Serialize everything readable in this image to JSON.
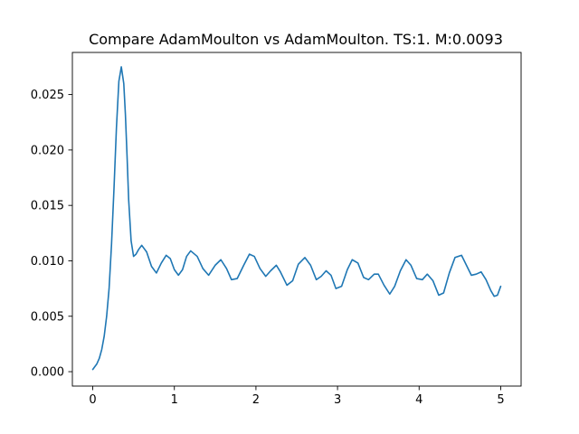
{
  "chart_data": {
    "type": "line",
    "title": "Compare AdamMoulton vs AdamMoulton. TS:1. M:0.0093",
    "xlabel": "",
    "ylabel": "",
    "xlim": [
      -0.25,
      5.25
    ],
    "ylim": [
      -0.0013,
      0.0288
    ],
    "grid": false,
    "x_ticks": [
      0,
      1,
      2,
      3,
      4,
      5
    ],
    "x_tick_labels": [
      "0",
      "1",
      "2",
      "3",
      "4",
      "5"
    ],
    "y_ticks": [
      0.0,
      0.005,
      0.01,
      0.015,
      0.02,
      0.025
    ],
    "y_tick_labels": [
      "0.000",
      "0.005",
      "0.010",
      "0.015",
      "0.020",
      "0.025"
    ],
    "series": [
      {
        "color": "#1f77b4",
        "x": [
          0,
          0.02,
          0.05,
          0.08,
          0.11,
          0.14,
          0.17,
          0.2,
          0.23,
          0.26,
          0.29,
          0.32,
          0.35,
          0.38,
          0.4,
          0.42,
          0.44,
          0.47,
          0.5,
          0.53,
          0.56,
          0.6,
          0.66,
          0.72,
          0.78,
          0.84,
          0.9,
          0.95,
          1.0,
          1.05,
          1.1,
          1.15,
          1.2,
          1.28,
          1.35,
          1.42,
          1.5,
          1.57,
          1.64,
          1.7,
          1.77,
          1.85,
          1.92,
          1.98,
          2.05,
          2.12,
          2.18,
          2.25,
          2.3,
          2.38,
          2.45,
          2.52,
          2.6,
          2.67,
          2.74,
          2.8,
          2.86,
          2.92,
          2.98,
          3.05,
          3.12,
          3.18,
          3.25,
          3.32,
          3.38,
          3.45,
          3.5,
          3.57,
          3.64,
          3.7,
          3.77,
          3.84,
          3.9,
          3.97,
          4.04,
          4.1,
          4.17,
          4.24,
          4.3,
          4.37,
          4.44,
          4.52,
          4.58,
          4.64,
          4.7,
          4.76,
          4.82,
          4.88,
          4.92,
          4.96,
          5.0
        ],
        "y": [
          0.0002,
          0.0004,
          0.0007,
          0.0012,
          0.002,
          0.0032,
          0.005,
          0.0075,
          0.0115,
          0.0165,
          0.022,
          0.0262,
          0.0275,
          0.026,
          0.0232,
          0.0195,
          0.0155,
          0.0118,
          0.0104,
          0.0106,
          0.011,
          0.0114,
          0.0108,
          0.0095,
          0.0089,
          0.0098,
          0.0105,
          0.0102,
          0.0092,
          0.0087,
          0.0092,
          0.0104,
          0.0109,
          0.0104,
          0.0093,
          0.0087,
          0.0096,
          0.0101,
          0.0093,
          0.0083,
          0.0084,
          0.0096,
          0.0106,
          0.0104,
          0.0093,
          0.0086,
          0.0091,
          0.0096,
          0.009,
          0.0078,
          0.0082,
          0.0097,
          0.0103,
          0.0096,
          0.0083,
          0.0086,
          0.0091,
          0.0087,
          0.0075,
          0.0077,
          0.0092,
          0.0101,
          0.0098,
          0.0085,
          0.0083,
          0.0088,
          0.0088,
          0.0078,
          0.007,
          0.0077,
          0.0091,
          0.0101,
          0.0096,
          0.0084,
          0.0083,
          0.0088,
          0.0082,
          0.0069,
          0.0071,
          0.0089,
          0.0103,
          0.0105,
          0.0096,
          0.0087,
          0.0088,
          0.009,
          0.0083,
          0.0073,
          0.0068,
          0.0069,
          0.0077
        ]
      }
    ]
  }
}
